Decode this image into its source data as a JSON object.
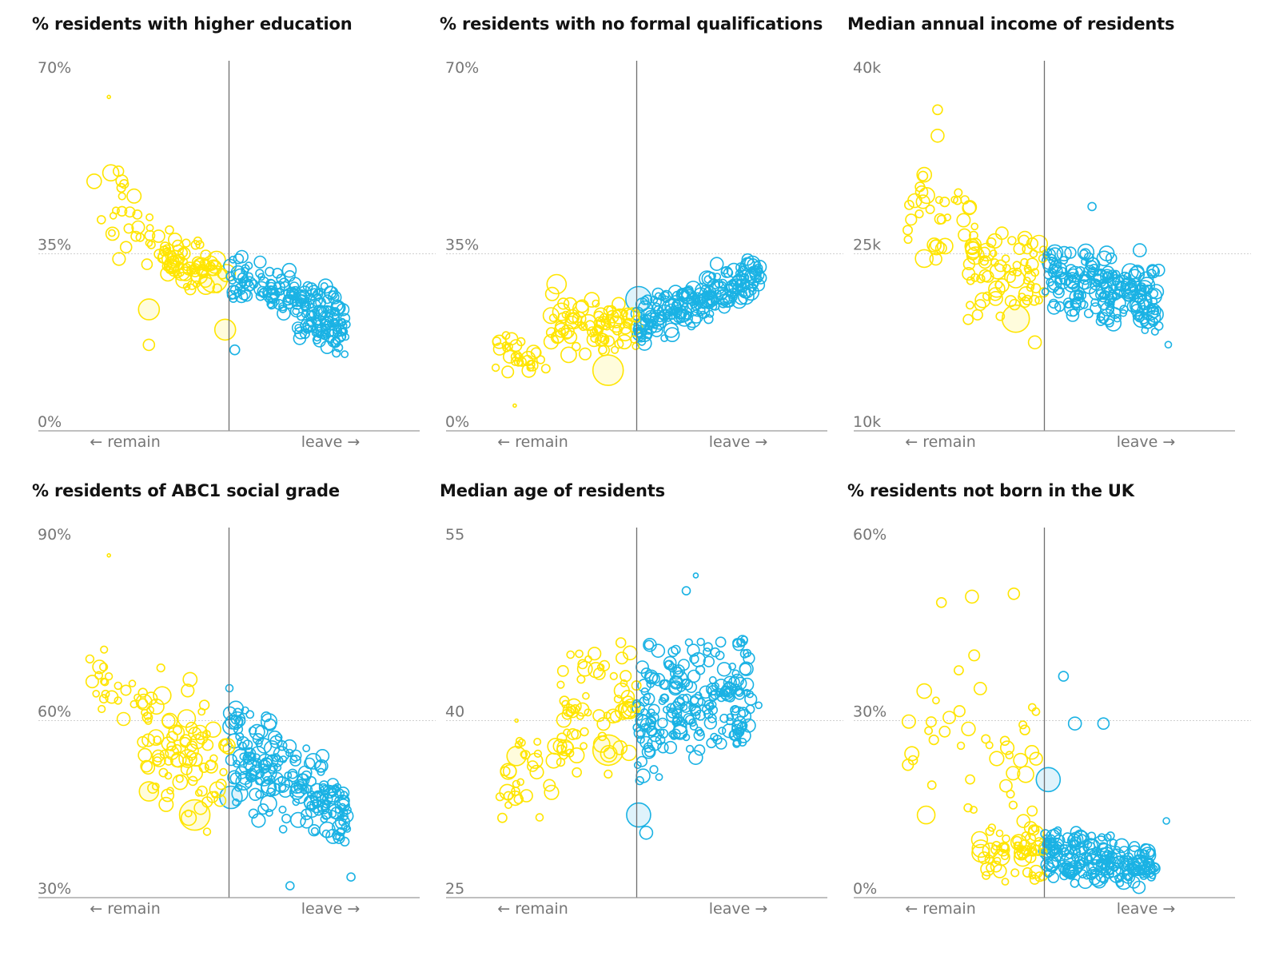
{
  "colors": {
    "remain": "#ffe500",
    "remain_fill": "#fffbd6",
    "leave": "#1ab2e4",
    "leave_fill": "#d9f1fa",
    "axis": "#999999",
    "midline": "#6e6e6e",
    "gridline": "#d0d0d0",
    "text": "#121212",
    "tick_text": "#767676"
  },
  "chart_data": [
    {
      "type": "scatter",
      "title": "% residents with higher education",
      "xlabel_left": "← remain",
      "xlabel_right": "leave →",
      "x_axis": "remain/leave lean (-1 = strongly remain, 0 = even, 1 = strongly leave)",
      "xlim": [
        -1,
        1
      ],
      "ylim": [
        0,
        70
      ],
      "yticks": [
        0,
        35,
        70
      ],
      "ytick_labels": [
        "0%",
        "35%",
        "70%"
      ],
      "reference_line": 35,
      "clusters": [
        {
          "side": "remain",
          "n": 30,
          "x": [
            -0.75,
            -0.3
          ],
          "y_start": [
            36,
            58
          ],
          "y_end": [
            28,
            46
          ],
          "r": [
            4,
            9
          ],
          "seed": 11
        },
        {
          "side": "remain",
          "n": 70,
          "x": [
            -0.35,
            0
          ],
          "y_start": [
            29,
            41
          ],
          "y_end": [
            23,
            37
          ],
          "r": [
            4,
            11
          ],
          "seed": 12
        },
        {
          "side": "leave",
          "n": 150,
          "x": [
            0,
            0.62
          ],
          "y_start": [
            26,
            36
          ],
          "y_end": [
            18,
            28
          ],
          "r": [
            4,
            9
          ],
          "seed": 13
        },
        {
          "side": "leave",
          "n": 50,
          "x": [
            0.35,
            0.63
          ],
          "y_start": [
            17,
            25
          ],
          "y_end": [
            14,
            21
          ],
          "r": [
            4,
            8
          ],
          "seed": 14
        }
      ],
      "points": [
        {
          "x": -0.63,
          "y": 66,
          "r": 2,
          "side": "remain"
        },
        {
          "x": -0.42,
          "y": 24,
          "r": 13,
          "side": "remain",
          "fill": true
        },
        {
          "x": -0.08,
          "y": 30,
          "r": 17,
          "side": "remain",
          "fill": true
        },
        {
          "x": -0.02,
          "y": 20,
          "r": 13,
          "side": "remain",
          "fill": true
        },
        {
          "x": -0.62,
          "y": 51,
          "r": 10,
          "side": "remain"
        },
        {
          "x": -0.42,
          "y": 17,
          "r": 7,
          "side": "remain"
        },
        {
          "x": 0.03,
          "y": 16,
          "r": 6,
          "side": "leave"
        },
        {
          "x": 0.05,
          "y": 34,
          "r": 6,
          "side": "leave"
        }
      ]
    },
    {
      "type": "scatter",
      "title": "% residents with no formal qualifications",
      "xlabel_left": "← remain",
      "xlabel_right": "leave →",
      "x_axis": "remain/leave lean (-1 = strongly remain, 0 = even, 1 = strongly leave)",
      "xlim": [
        -1,
        1
      ],
      "ylim": [
        0,
        70
      ],
      "yticks": [
        0,
        35,
        70
      ],
      "ytick_labels": [
        "0%",
        "35%",
        "70%"
      ],
      "reference_line": 35,
      "clusters": [
        {
          "side": "remain",
          "n": 30,
          "x": [
            -0.75,
            -0.45
          ],
          "y_start": [
            12,
            20
          ],
          "y_end": [
            9,
            17
          ],
          "r": [
            4,
            9
          ],
          "seed": 21
        },
        {
          "side": "remain",
          "n": 80,
          "x": [
            -0.45,
            0
          ],
          "y_start": [
            13,
            32
          ],
          "y_end": [
            16,
            26
          ],
          "r": [
            4,
            11
          ],
          "seed": 22
        },
        {
          "side": "leave",
          "n": 200,
          "x": [
            0,
            0.65
          ],
          "y_start": [
            15,
            26
          ],
          "y_end": [
            27,
            36
          ],
          "r": [
            4,
            10
          ],
          "seed": 23
        }
      ],
      "points": [
        {
          "x": -0.64,
          "y": 5,
          "r": 2,
          "side": "remain"
        },
        {
          "x": -0.15,
          "y": 12,
          "r": 19,
          "side": "remain",
          "fill": true
        },
        {
          "x": 0.01,
          "y": 26,
          "r": 16,
          "side": "leave",
          "fill": true
        },
        {
          "x": -0.42,
          "y": 29,
          "r": 12,
          "side": "remain"
        },
        {
          "x": 0.42,
          "y": 33,
          "r": 8,
          "side": "leave"
        },
        {
          "x": 0.64,
          "y": 30,
          "r": 4,
          "side": "leave"
        }
      ]
    },
    {
      "type": "scatter",
      "title": "Median annual income of residents",
      "xlabel_left": "← remain",
      "xlabel_right": "leave →",
      "x_axis": "remain/leave lean (-1 = strongly remain, 0 = even, 1 = strongly leave)",
      "xlim": [
        -1,
        1
      ],
      "ylim": [
        10,
        40
      ],
      "yticks": [
        10,
        25,
        40
      ],
      "ytick_labels": [
        "10k",
        "25k",
        "40k"
      ],
      "reference_line": 25,
      "clusters": [
        {
          "side": "remain",
          "n": 35,
          "x": [
            -0.72,
            -0.35
          ],
          "y_start": [
            25,
            34
          ],
          "y_end": [
            22,
            30
          ],
          "r": [
            4,
            10
          ],
          "seed": 31
        },
        {
          "side": "remain",
          "n": 70,
          "x": [
            -0.4,
            0
          ],
          "y_start": [
            19,
            28
          ],
          "y_end": [
            19,
            27
          ],
          "r": [
            4,
            11
          ],
          "seed": 32
        },
        {
          "side": "leave",
          "n": 200,
          "x": [
            0,
            0.6
          ],
          "y_start": [
            19,
            27
          ],
          "y_end": [
            18,
            24
          ],
          "r": [
            4,
            10
          ],
          "seed": 33
        }
      ],
      "points": [
        {
          "x": -0.56,
          "y": 37.2,
          "r": 6,
          "side": "remain"
        },
        {
          "x": -0.56,
          "y": 35,
          "r": 8,
          "side": "remain"
        },
        {
          "x": -0.63,
          "y": 31.7,
          "r": 9,
          "side": "remain"
        },
        {
          "x": -0.15,
          "y": 19.5,
          "r": 17,
          "side": "remain",
          "fill": true
        },
        {
          "x": -0.63,
          "y": 24.6,
          "r": 11,
          "side": "remain"
        },
        {
          "x": -0.05,
          "y": 17.5,
          "r": 8,
          "side": "remain"
        },
        {
          "x": 0.65,
          "y": 17.3,
          "r": 4,
          "side": "leave"
        },
        {
          "x": 0.5,
          "y": 25.3,
          "r": 8,
          "side": "leave"
        },
        {
          "x": 0.25,
          "y": 29,
          "r": 5,
          "side": "leave"
        }
      ]
    },
    {
      "type": "scatter",
      "title": "% residents of ABC1 social grade",
      "xlabel_left": "← remain",
      "xlabel_right": "leave →",
      "x_axis": "remain/leave lean (-1 = strongly remain, 0 = even, 1 = strongly leave)",
      "xlim": [
        -1,
        1
      ],
      "ylim": [
        30,
        90
      ],
      "yticks": [
        30,
        60,
        90
      ],
      "ytick_labels": [
        "30%",
        "60%",
        "90%"
      ],
      "reference_line": 60,
      "clusters": [
        {
          "side": "remain",
          "n": 30,
          "x": [
            -0.75,
            -0.4
          ],
          "y_start": [
            60,
            74
          ],
          "y_end": [
            54,
            68
          ],
          "r": [
            4,
            9
          ],
          "seed": 41
        },
        {
          "side": "remain",
          "n": 80,
          "x": [
            -0.45,
            0
          ],
          "y_start": [
            44,
            72
          ],
          "y_end": [
            38,
            64
          ],
          "r": [
            4,
            11
          ],
          "seed": 42
        },
        {
          "side": "leave",
          "n": 200,
          "x": [
            0,
            0.62
          ],
          "y_start": [
            44,
            68
          ],
          "y_end": [
            36,
            50
          ],
          "r": [
            4,
            10
          ],
          "seed": 43
        }
      ],
      "points": [
        {
          "x": -0.63,
          "y": 88,
          "r": 2,
          "side": "remain"
        },
        {
          "x": -0.18,
          "y": 44,
          "r": 19,
          "side": "remain",
          "fill": true
        },
        {
          "x": 0.01,
          "y": 47,
          "r": 14,
          "side": "leave",
          "fill": true
        },
        {
          "x": -0.42,
          "y": 48,
          "r": 12,
          "side": "remain",
          "fill": true
        },
        {
          "x": 0.49,
          "y": 54,
          "r": 8,
          "side": "leave"
        },
        {
          "x": 0.32,
          "y": 32,
          "r": 5,
          "side": "leave"
        },
        {
          "x": 0.64,
          "y": 33.5,
          "r": 5,
          "side": "leave"
        }
      ]
    },
    {
      "type": "scatter",
      "title": "Median age of residents",
      "xlabel_left": "← remain",
      "xlabel_right": "leave →",
      "x_axis": "remain/leave lean (-1 = strongly remain, 0 = even, 1 = strongly leave)",
      "xlim": [
        -1,
        1
      ],
      "ylim": [
        25,
        55
      ],
      "yticks": [
        25,
        40,
        55
      ],
      "ytick_labels": [
        "25",
        "40",
        "55"
      ],
      "reference_line": 40,
      "clusters": [
        {
          "side": "remain",
          "n": 30,
          "x": [
            -0.72,
            -0.4
          ],
          "y_start": [
            31,
            38
          ],
          "y_end": [
            31,
            42
          ],
          "r": [
            4,
            10
          ],
          "seed": 51
        },
        {
          "side": "remain",
          "n": 70,
          "x": [
            -0.4,
            0
          ],
          "y_start": [
            34,
            46
          ],
          "y_end": [
            36,
            48
          ],
          "r": [
            4,
            11
          ],
          "seed": 52
        },
        {
          "side": "leave",
          "n": 220,
          "x": [
            0,
            0.6
          ],
          "y_start": [
            34,
            47
          ],
          "y_end": [
            37,
            48
          ],
          "r": [
            4,
            9
          ],
          "seed": 53
        }
      ],
      "points": [
        {
          "x": -0.15,
          "y": 37.5,
          "r": 19,
          "side": "remain",
          "fill": true
        },
        {
          "x": 0.01,
          "y": 32,
          "r": 15,
          "side": "leave",
          "fill": true
        },
        {
          "x": -0.63,
          "y": 37,
          "r": 12,
          "side": "remain",
          "fill": true
        },
        {
          "x": 0.26,
          "y": 51,
          "r": 5,
          "side": "leave"
        },
        {
          "x": 0.31,
          "y": 52.3,
          "r": 3,
          "side": "leave"
        },
        {
          "x": 0.64,
          "y": 41.3,
          "r": 4,
          "side": "leave"
        },
        {
          "x": -0.63,
          "y": 40,
          "r": 2,
          "side": "remain"
        },
        {
          "x": 0.05,
          "y": 30.5,
          "r": 8,
          "side": "leave"
        }
      ]
    },
    {
      "type": "scatter",
      "title": "% residents not born in the UK",
      "xlabel_left": "← remain",
      "xlabel_right": "leave →",
      "x_axis": "remain/leave lean (-1 = strongly remain, 0 = even, 1 = strongly leave)",
      "xlim": [
        -1,
        1
      ],
      "ylim": [
        0,
        60
      ],
      "yticks": [
        0,
        30,
        60
      ],
      "ytick_labels": [
        "0%",
        "30%",
        "60%"
      ],
      "reference_line": 30,
      "clusters": [
        {
          "side": "remain",
          "n": 40,
          "x": [
            -0.72,
            -0.02
          ],
          "y_start": [
            8,
            48
          ],
          "y_end": [
            8,
            38
          ],
          "r": [
            4,
            10
          ],
          "seed": 61
        },
        {
          "side": "remain",
          "n": 60,
          "x": [
            -0.35,
            0
          ],
          "y_start": [
            2,
            12
          ],
          "y_end": [
            2,
            15
          ],
          "r": [
            4,
            11
          ],
          "seed": 62
        },
        {
          "side": "leave",
          "n": 200,
          "x": [
            0,
            0.6
          ],
          "y_start": [
            2,
            14
          ],
          "y_end": [
            1,
            8
          ],
          "r": [
            4,
            10
          ],
          "seed": 63
        }
      ],
      "points": [
        {
          "x": 0.02,
          "y": 20,
          "r": 15,
          "side": "leave",
          "fill": true
        },
        {
          "x": 0.1,
          "y": 37.5,
          "r": 6,
          "side": "leave"
        },
        {
          "x": 0.16,
          "y": 29.5,
          "r": 8,
          "side": "leave"
        },
        {
          "x": 0.31,
          "y": 29.5,
          "r": 7,
          "side": "leave"
        },
        {
          "x": 0.64,
          "y": 13,
          "r": 4,
          "side": "leave"
        },
        {
          "x": -0.63,
          "y": 35,
          "r": 9,
          "side": "remain"
        },
        {
          "x": -0.38,
          "y": 51,
          "r": 8,
          "side": "remain"
        },
        {
          "x": -0.16,
          "y": 51.5,
          "r": 7,
          "side": "remain"
        },
        {
          "x": -0.54,
          "y": 50,
          "r": 6,
          "side": "remain"
        },
        {
          "x": -0.62,
          "y": 14,
          "r": 11,
          "side": "remain"
        }
      ]
    }
  ]
}
